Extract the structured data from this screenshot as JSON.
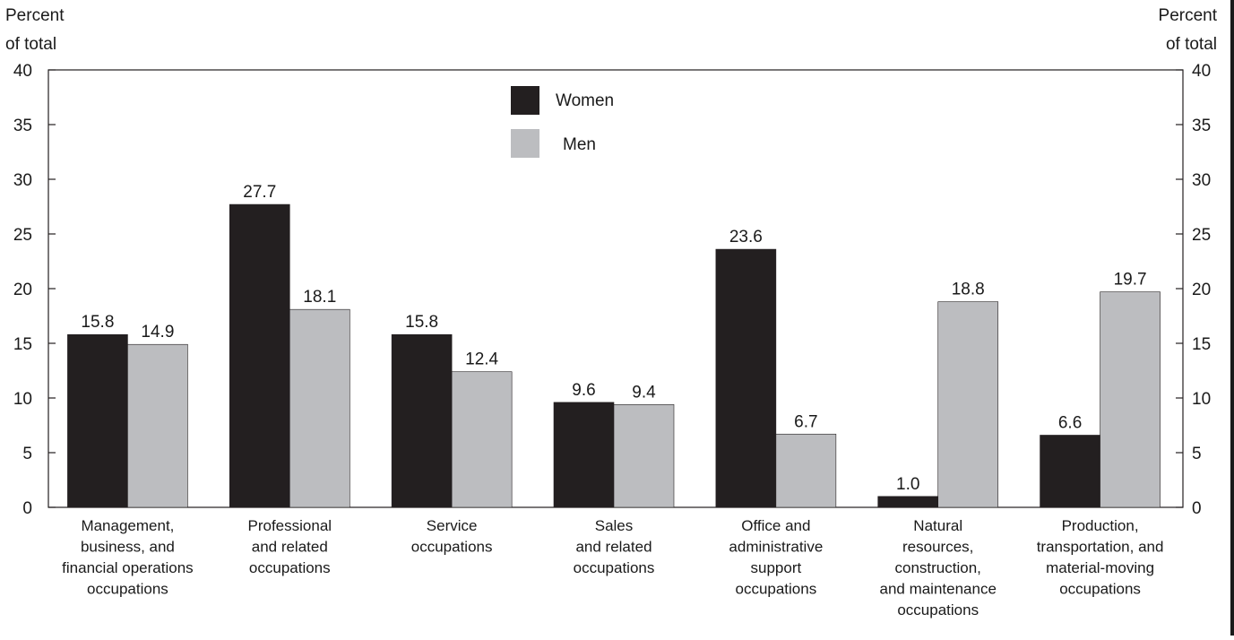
{
  "colors": {
    "women": "#231f20",
    "men": "#bcbdc0",
    "axis": "#231f20",
    "text": "#1a1a1a"
  },
  "chart_data": {
    "type": "bar",
    "title": "",
    "ylabel_left": [
      "Percent",
      "of total"
    ],
    "ylabel_right": [
      "Percent",
      "of total"
    ],
    "ylim": [
      0,
      40
    ],
    "yticks": [
      0,
      5,
      10,
      15,
      20,
      25,
      30,
      35,
      40
    ],
    "grid": false,
    "legend_position": "top-center",
    "categories": [
      [
        "Management,",
        "business, and",
        "financial operations",
        "occupations"
      ],
      [
        "Professional",
        "and related",
        "occupations"
      ],
      [
        "Service",
        "occupations"
      ],
      [
        "Sales",
        "and related",
        "occupations"
      ],
      [
        "Office and",
        "administrative",
        "support",
        "occupations"
      ],
      [
        "Natural",
        "resources,",
        "construction,",
        "and maintenance",
        "occupations"
      ],
      [
        "Production,",
        "transportation, and",
        "material-moving",
        "occupations"
      ]
    ],
    "series": [
      {
        "name": "Women",
        "values": [
          15.8,
          27.7,
          15.8,
          9.6,
          23.6,
          1.0,
          6.6
        ],
        "labels": [
          "15.8",
          "27.7",
          "15.8",
          "9.6",
          "23.6",
          "1.0",
          "6.6"
        ]
      },
      {
        "name": "Men",
        "values": [
          14.9,
          18.1,
          12.4,
          9.4,
          6.7,
          18.8,
          19.7
        ],
        "labels": [
          "14.9",
          "18.1",
          "12.4",
          "9.4",
          "6.7",
          "18.8",
          "19.7"
        ]
      }
    ]
  }
}
